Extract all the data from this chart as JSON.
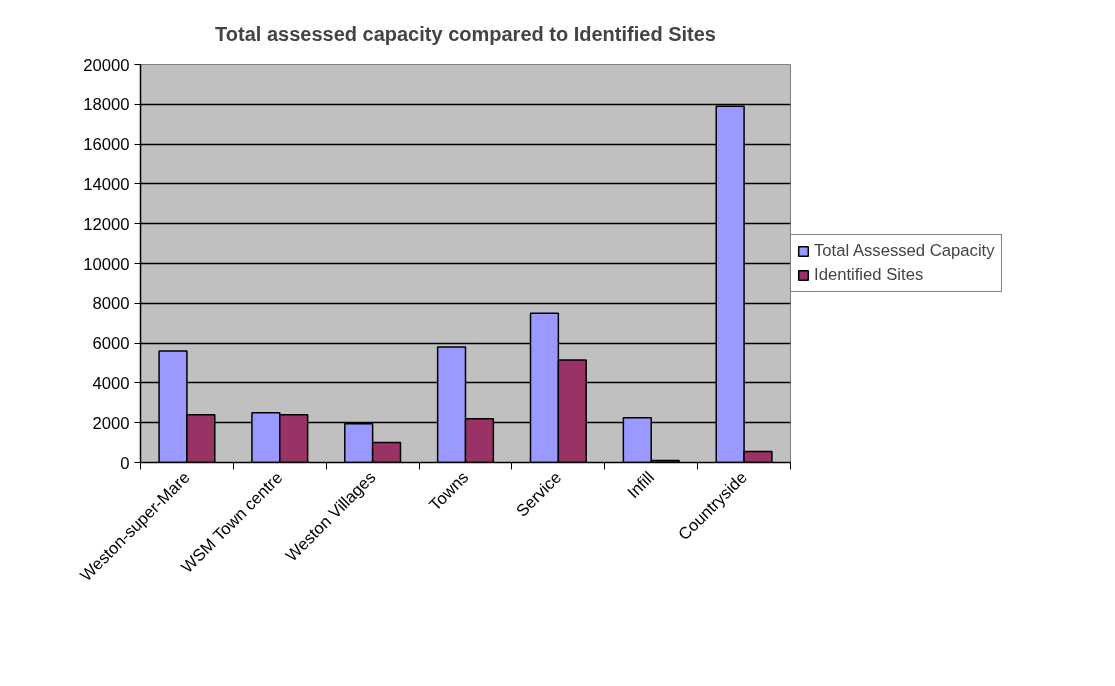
{
  "chart_data": {
    "type": "bar",
    "title": "Total assessed capacity compared to Identified Sites",
    "categories": [
      "Weston-super-Mare",
      "WSM Town centre",
      "Weston Villages",
      "Towns",
      "Service",
      "Infill",
      "Countryside"
    ],
    "series": [
      {
        "name": "Total Assessed Capacity",
        "color": "#9999ff",
        "values": [
          5600,
          2500,
          1950,
          5800,
          7500,
          2250,
          17900
        ]
      },
      {
        "name": "Identified Sites",
        "color": "#993366",
        "values": [
          2400,
          2400,
          1000,
          2200,
          5150,
          100,
          550
        ]
      }
    ],
    "ylim": [
      0,
      20000
    ],
    "yticks": [
      0,
      2000,
      4000,
      6000,
      8000,
      10000,
      12000,
      14000,
      16000,
      18000,
      20000
    ],
    "grid": "y",
    "legend": "right"
  }
}
